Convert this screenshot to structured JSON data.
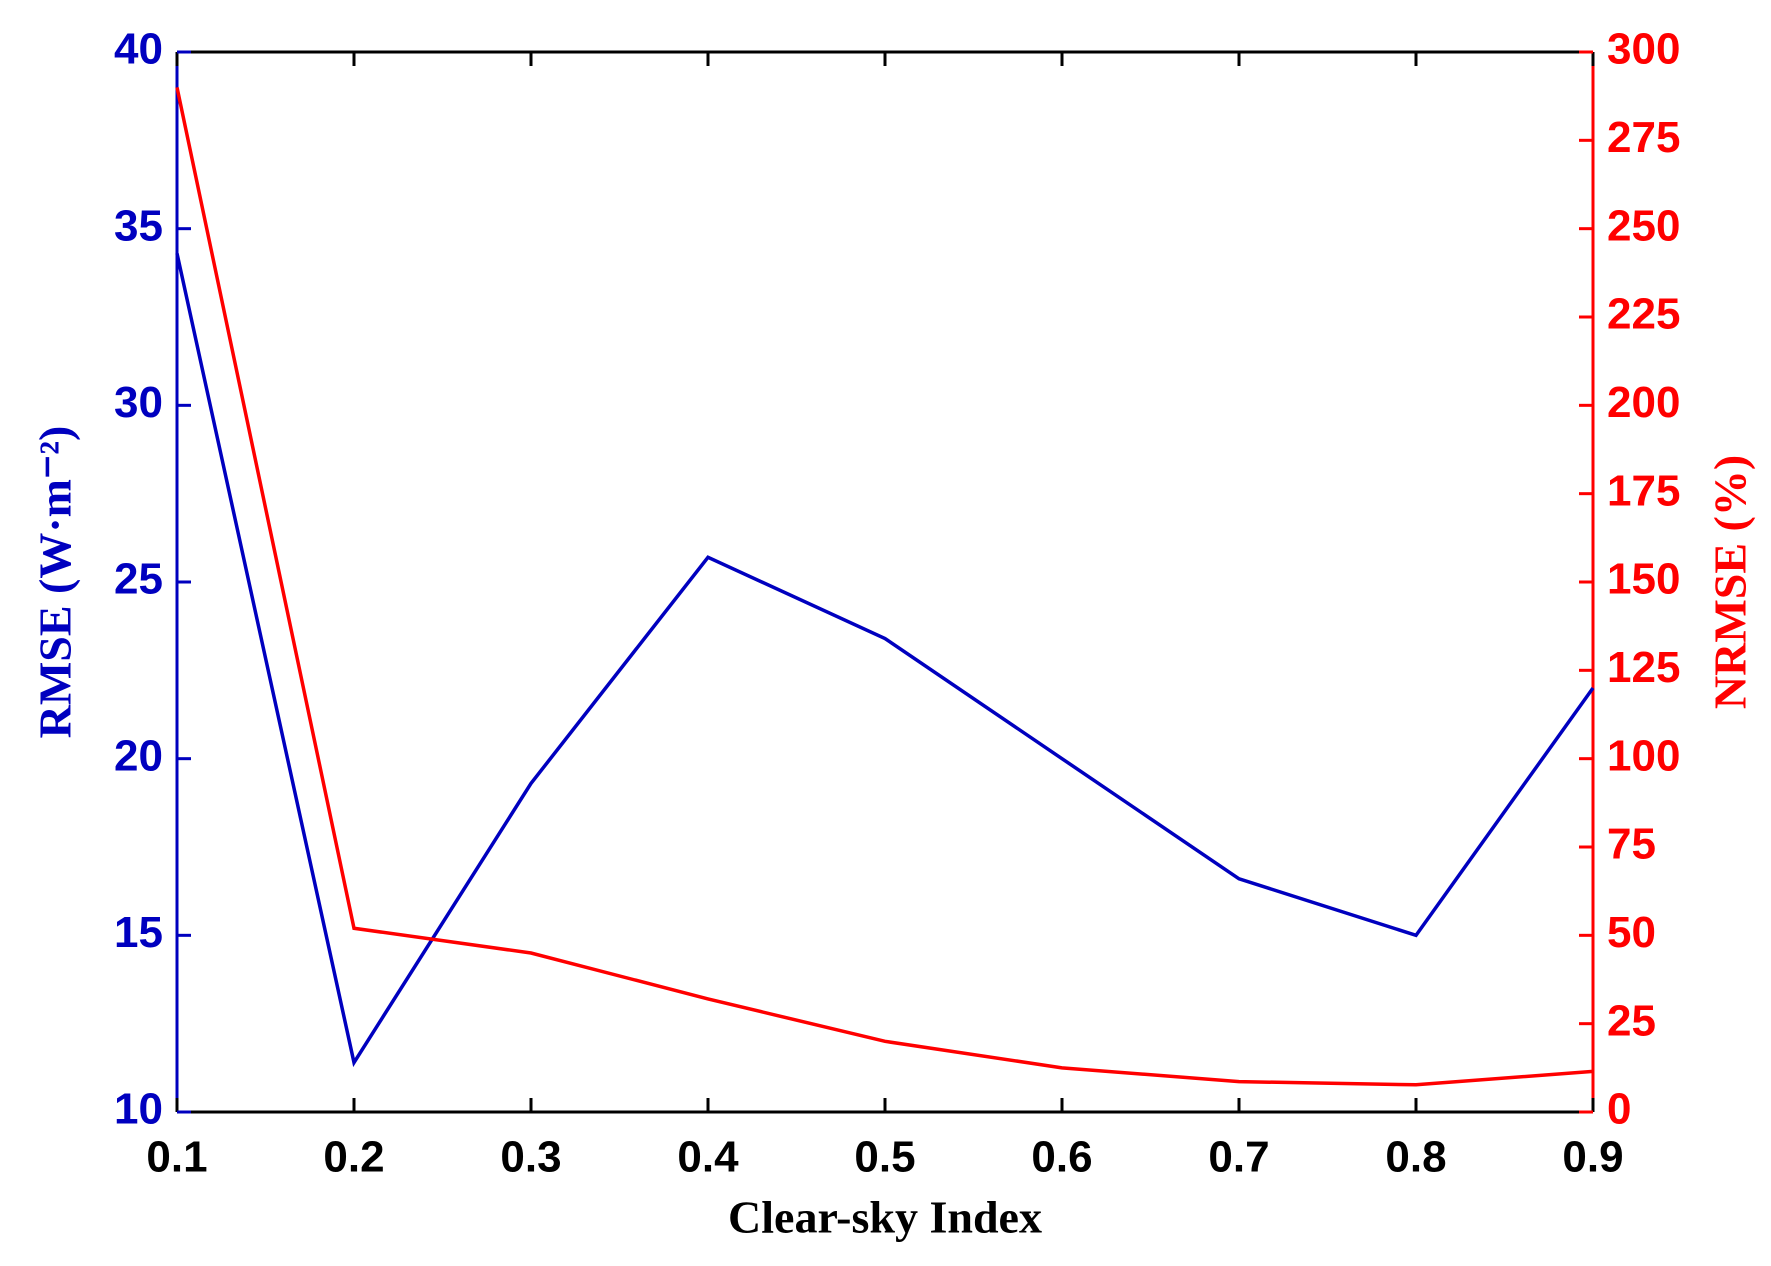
{
  "chart_data": {
    "type": "line",
    "x_label": "Clear-sky Index",
    "y_label": "RMSE (W·m⁻²)",
    "y2_label": "NRMSE (%)",
    "x": [
      0.1,
      0.2,
      0.3,
      0.4,
      0.5,
      0.6,
      0.7,
      0.8,
      0.9
    ],
    "series": [
      {
        "name": "RMSE",
        "color": "#0000bf",
        "values": [
          34.3,
          11.4,
          19.3,
          25.7,
          23.4,
          20.0,
          16.6,
          15.0,
          22.0
        ]
      },
      {
        "name": "NRMSE",
        "color": "#ff0000",
        "axis": "y2",
        "values": [
          290,
          52,
          45,
          32,
          20,
          12.5,
          8.6,
          7.7,
          11.5
        ]
      }
    ],
    "xlim": [
      0.1,
      0.9
    ],
    "xticks": [
      0.1,
      0.2,
      0.3,
      0.4,
      0.5,
      0.6,
      0.7,
      0.8,
      0.9
    ],
    "ylim": [
      10,
      40
    ],
    "yticks": [
      10,
      15,
      20,
      25,
      30,
      35,
      40
    ],
    "y2lim": [
      0,
      300
    ],
    "y2ticks": [
      0,
      25,
      50,
      75,
      100,
      125,
      150,
      175,
      200,
      225,
      250,
      275,
      300
    ],
    "grid": false
  }
}
